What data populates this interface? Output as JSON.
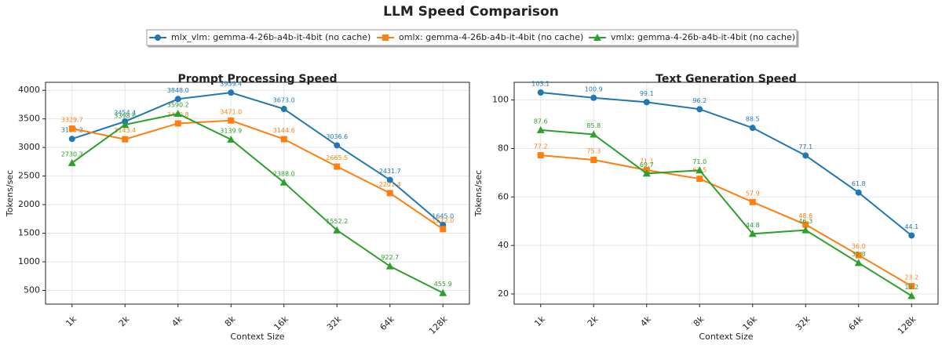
{
  "title": "LLM Speed Comparison",
  "chart_data": [
    {
      "type": "line",
      "title": "Prompt Processing Speed",
      "xlabel": "Context Size",
      "ylabel": "Tokens/sec",
      "categories": [
        "1k",
        "2k",
        "4k",
        "8k",
        "16k",
        "32k",
        "64k",
        "128k"
      ],
      "ylim": [
        260,
        4140
      ],
      "yticks": [
        500,
        1000,
        1500,
        2000,
        2500,
        3000,
        3500,
        4000
      ],
      "grid": true,
      "series": [
        {
          "name": "mlx_vlm: gemma-4-26b-a4b-it-4bit (no cache)",
          "color": "#1f77b4",
          "marker": "circle",
          "values": [
            3150.2,
            3454.4,
            3848.0,
            3959.4,
            3673.0,
            3036.6,
            2431.7,
            1645.0
          ],
          "value_labels": [
            "3150.2",
            "3454.4",
            "3848.0",
            "3959.4",
            "3673.0",
            "3036.6",
            "2431.7",
            "1645.0"
          ]
        },
        {
          "name": "omlx: gemma-4-26b-a4b-it-4bit (no cache)",
          "color": "#ff7f0e",
          "marker": "square",
          "values": [
            3329.7,
            3143.4,
            3420.8,
            3471.0,
            3144.6,
            2665.5,
            2201.4,
            1572.0
          ],
          "value_labels": [
            "3329.7",
            "3143.4",
            "3420.8",
            "3471.0",
            "3144.6",
            "2665.5",
            "2201.4",
            "1572.0"
          ]
        },
        {
          "name": "vmlx: gemma-4-26b-a4b-it-4bit (no cache)",
          "color": "#2ca02c",
          "marker": "triangle",
          "values": [
            2730.3,
            3398.6,
            3590.2,
            3139.9,
            2388.0,
            1552.2,
            922.7,
            455.9
          ],
          "value_labels": [
            "2730.3",
            "3398.6",
            "3590.2",
            "3139.9",
            "2388.0",
            "1552.2",
            "922.7",
            "455.9"
          ]
        }
      ]
    },
    {
      "type": "line",
      "title": "Text Generation Speed",
      "xlabel": "Context Size",
      "ylabel": "Tokens/sec",
      "categories": [
        "1k",
        "2k",
        "4k",
        "8k",
        "16k",
        "32k",
        "64k",
        "128k"
      ],
      "ylim": [
        15.8,
        107.3
      ],
      "yticks": [
        20,
        40,
        60,
        80,
        100
      ],
      "grid": true,
      "series": [
        {
          "name": "mlx_vlm: gemma-4-26b-a4b-it-4bit (no cache)",
          "color": "#1f77b4",
          "marker": "circle",
          "values": [
            103.1,
            100.9,
            99.1,
            96.2,
            88.5,
            77.1,
            61.8,
            44.1
          ]
        },
        {
          "name": "omlx: gemma-4-26b-a4b-it-4bit (no cache)",
          "color": "#ff7f0e",
          "marker": "square",
          "values": [
            77.2,
            75.3,
            71.1,
            67.5,
            57.9,
            48.6,
            36.0,
            23.2
          ],
          "value_labels": [
            "77.2",
            "75.3",
            "71.1",
            "67.5",
            "57.9",
            "48.6",
            "36.0",
            "23.2"
          ]
        },
        {
          "name": "vmlx: gemma-4-26b-a4b-it-4bit (no cache)",
          "color": "#2ca02c",
          "marker": "triangle",
          "values": [
            87.6,
            85.8,
            69.7,
            71.0,
            44.8,
            46.3,
            32.8,
            19.2
          ],
          "value_labels": [
            "87.6",
            "85.8",
            "69.7",
            "71.0",
            "44.8",
            "46.3",
            "32.8",
            "19.2"
          ]
        }
      ]
    }
  ]
}
